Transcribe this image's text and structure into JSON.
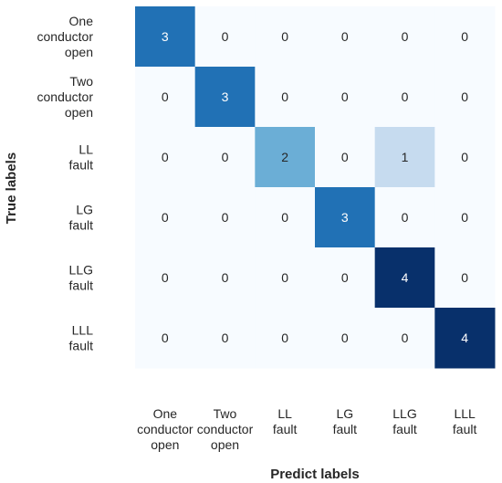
{
  "chart_data": {
    "type": "heatmap",
    "title": "",
    "xlabel": "Predict labels",
    "ylabel": "True labels",
    "x_categories": [
      [
        "One",
        "conductor",
        "open"
      ],
      [
        "Two",
        "conductor",
        "open"
      ],
      [
        "LL",
        "fault"
      ],
      [
        "LG",
        "fault"
      ],
      [
        "LLG",
        "fault"
      ],
      [
        "LLL",
        "fault"
      ]
    ],
    "y_categories": [
      [
        "One",
        "conductor",
        "open"
      ],
      [
        "Two",
        "conductor",
        "open"
      ],
      [
        "LL",
        "fault"
      ],
      [
        "LG",
        "fault"
      ],
      [
        "LLG",
        "fault"
      ],
      [
        "LLL",
        "fault"
      ]
    ],
    "matrix": [
      [
        3,
        0,
        0,
        0,
        0,
        0
      ],
      [
        0,
        3,
        0,
        0,
        0,
        0
      ],
      [
        0,
        0,
        2,
        0,
        1,
        0
      ],
      [
        0,
        0,
        0,
        3,
        0,
        0
      ],
      [
        0,
        0,
        0,
        0,
        4,
        0
      ],
      [
        0,
        0,
        0,
        0,
        0,
        4
      ]
    ],
    "colormap": "Blues",
    "vmin": 0,
    "vmax": 4,
    "annotations": true,
    "colorbar": false
  }
}
